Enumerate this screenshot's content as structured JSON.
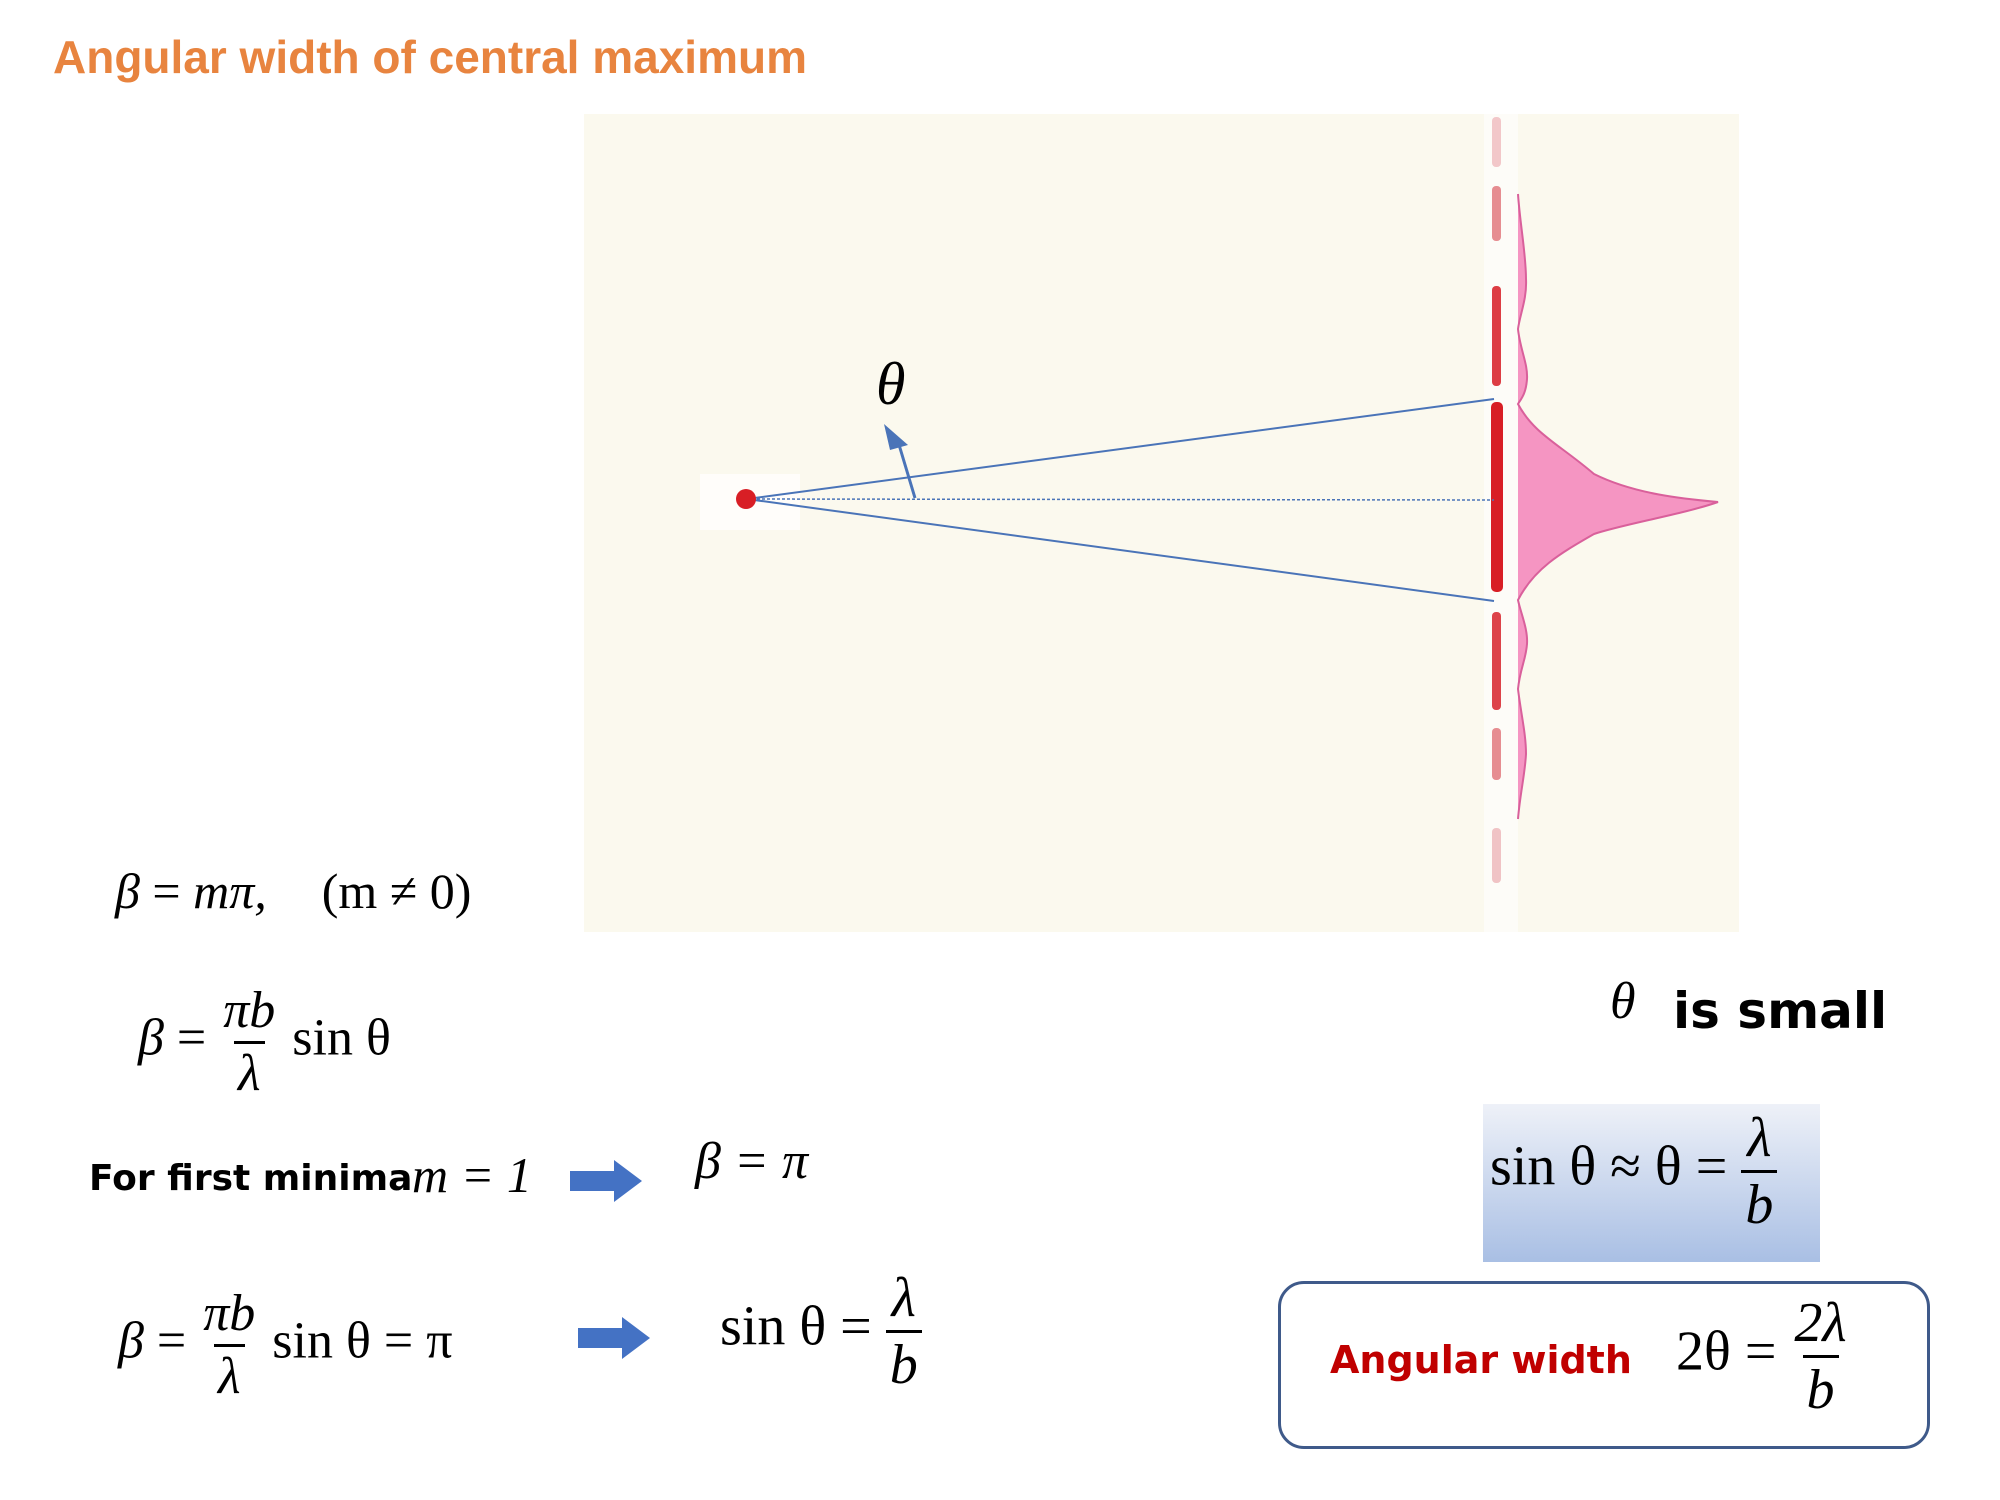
{
  "title": "Angular width of central maximum",
  "diagram": {
    "angle_label": "θ",
    "colors": {
      "background": "#fbf9ee",
      "ray": "#4a74b8",
      "source": "#d81e25",
      "fringe_bright": "#d81e25",
      "intensity_fill": "#f595c2"
    }
  },
  "equations": {
    "beta_m_pi": {
      "beta": "β",
      "eq": "=",
      "rhs": "mπ,",
      "cond": "(m ≠ 0)"
    },
    "beta_def": {
      "beta": "β",
      "eq": "=",
      "num": "πb",
      "den": "λ",
      "tail": "sin θ"
    },
    "first_minima": {
      "label": "For first minima",
      "m_expr": "m = 1",
      "result": "β = π"
    },
    "beta_solve": {
      "beta": "β",
      "eq": "=",
      "num": "πb",
      "den": "λ",
      "tail": "sin θ = π"
    },
    "sin_result": {
      "lhs": "sin θ =",
      "num": "λ",
      "den": "b"
    },
    "theta_small": {
      "theta": "θ",
      "text": "is small"
    },
    "sin_approx": {
      "lhs": "sin θ ≈ θ =",
      "num": "λ",
      "den": "b"
    },
    "angular_width": {
      "label": "Angular width",
      "lhs": "2θ =",
      "num": "2λ",
      "den": "b"
    }
  },
  "colors": {
    "title": "#e8843f",
    "angular_width_label": "#c00000",
    "arrow": "#4472c4",
    "box_border": "#3f5a8a"
  }
}
